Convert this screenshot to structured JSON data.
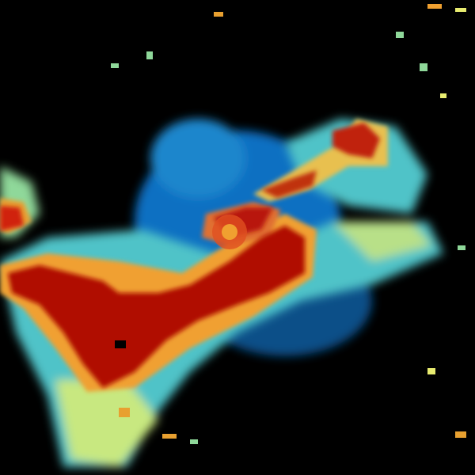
{
  "radar": {
    "background": "#000000",
    "palette": {
      "blue": "#0a6fc2",
      "light_blue": "#2e9bd6",
      "cyan": "#4fc3c8",
      "green": "#8fd89a",
      "yellow": "#e8ec70",
      "orange": "#f0a030",
      "red_orange": "#e05020",
      "dark_red": "#b01000"
    }
  }
}
